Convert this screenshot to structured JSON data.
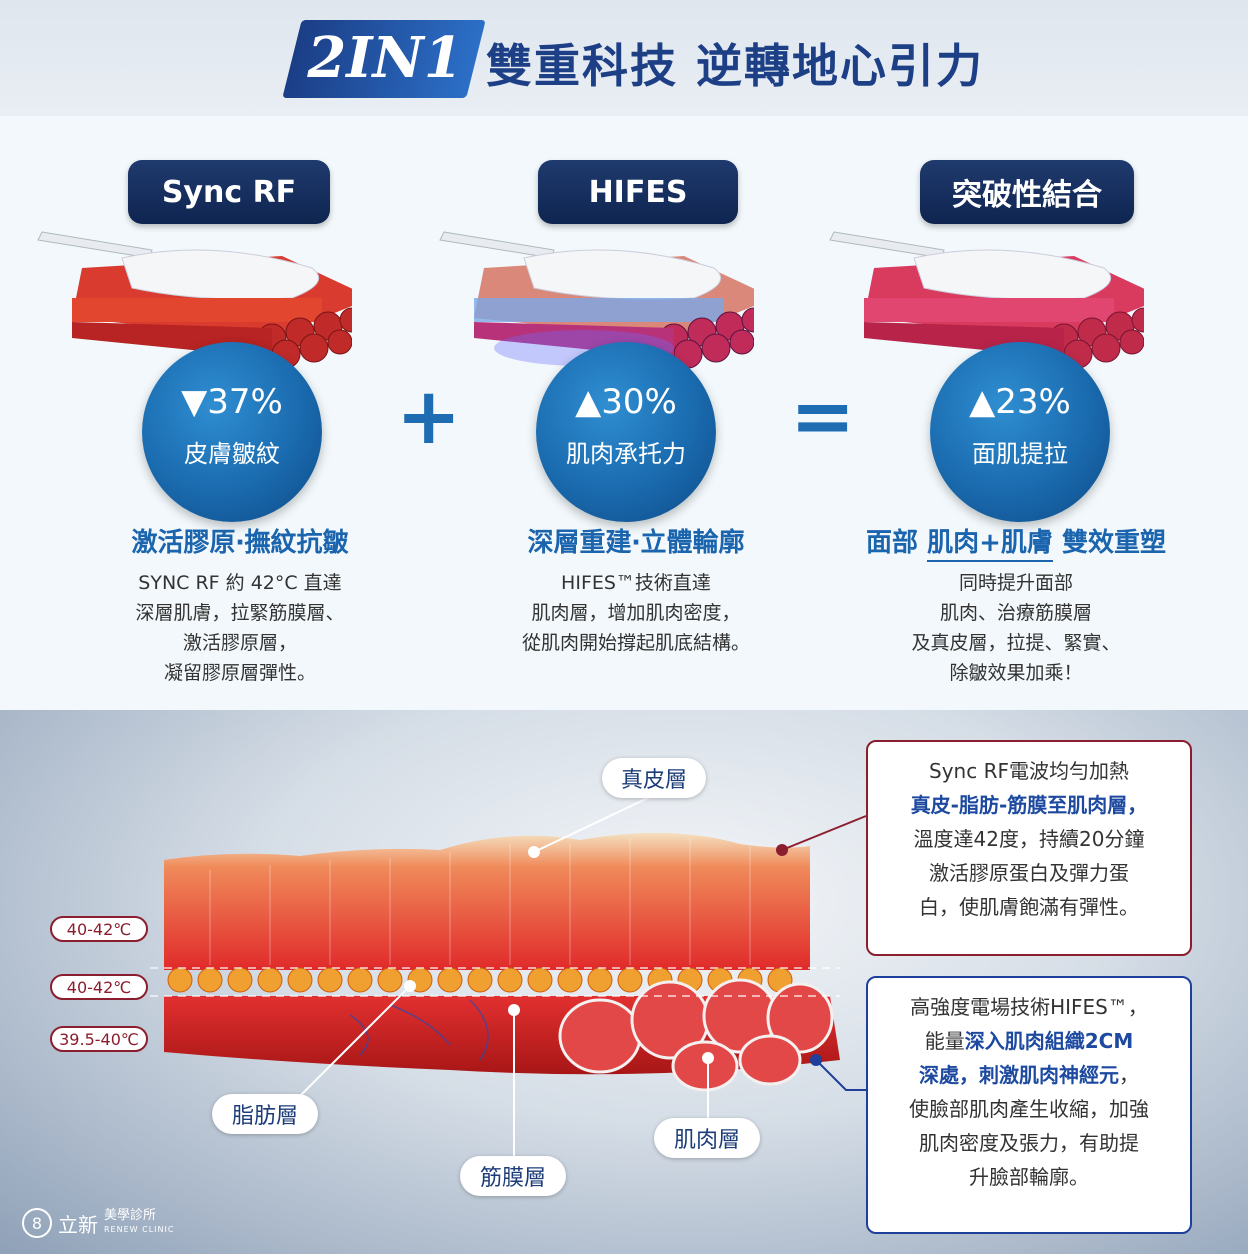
{
  "header": {
    "badge": "2IN1",
    "title": "雙重科技 逆轉地心引力"
  },
  "columns": [
    {
      "pill": "Sync RF",
      "stat": "▼37%",
      "stat_label": "皮膚皺紋",
      "subhead": "激活膠原‧撫紋抗皺",
      "desc": [
        "SYNC RF 約 42°C 直達",
        "深層肌膚，拉緊筋膜層、",
        "激活膠原層，",
        "凝留膠原層彈性。"
      ]
    },
    {
      "pill": "HIFES",
      "stat": "▲30%",
      "stat_label": "肌肉承托力",
      "subhead": "深層重建‧立體輪廓",
      "desc": [
        "HIFES™技術直達",
        "肌肉層，增加肌肉密度，",
        "從肌肉開始撐起肌底結構。"
      ]
    },
    {
      "pill": "突破性結合",
      "stat": "▲23%",
      "stat_label": "面肌提拉",
      "subhead_a": "面部 ",
      "subhead_b": "肌肉+肌膚",
      "subhead_c": " 雙效重塑",
      "desc": [
        "同時提升面部",
        "肌肉、治療筋膜層",
        "及真皮層，拉提、緊實、",
        "除皺效果加乘！"
      ]
    }
  ],
  "operators": {
    "plus": "+",
    "equals": "="
  },
  "diagram": {
    "labels": {
      "dermis": "真皮層",
      "fat": "脂肪層",
      "fascia": "筋膜層",
      "muscle": "肌肉層"
    },
    "temps": [
      "40-42℃",
      "40-42℃",
      "39.5-40℃"
    ]
  },
  "info_rf": {
    "line1": "Sync RF電波均勻加熱",
    "line2": "真皮-脂肪-筋膜至肌肉層，",
    "line3": "溫度達42度，持續20分鐘",
    "line4": "激活膠原蛋白及彈力蛋",
    "line5": "白，使肌膚飽滿有彈性。"
  },
  "info_hifes": {
    "line1": "高強度電場技術HIFES™，",
    "line2a": "能量",
    "line2b": "深入肌肉組織2CM",
    "line3a": "深處，刺激肌肉神經元",
    "line3b": "，",
    "line4": "使臉部肌肉產生收縮，加強",
    "line5": "肌肉密度及張力，有助提",
    "line6": "升臉部輪廓。"
  },
  "logo": {
    "mark": "8",
    "name": "立新",
    "sub": "美學診所",
    "sub_en": "RENEW CLINIC"
  },
  "colors": {
    "navy": "#1c3f86",
    "accent_blue": "#1b64ae",
    "dark_red": "#8a1e2e",
    "muscle_red": "#d82a2a"
  }
}
